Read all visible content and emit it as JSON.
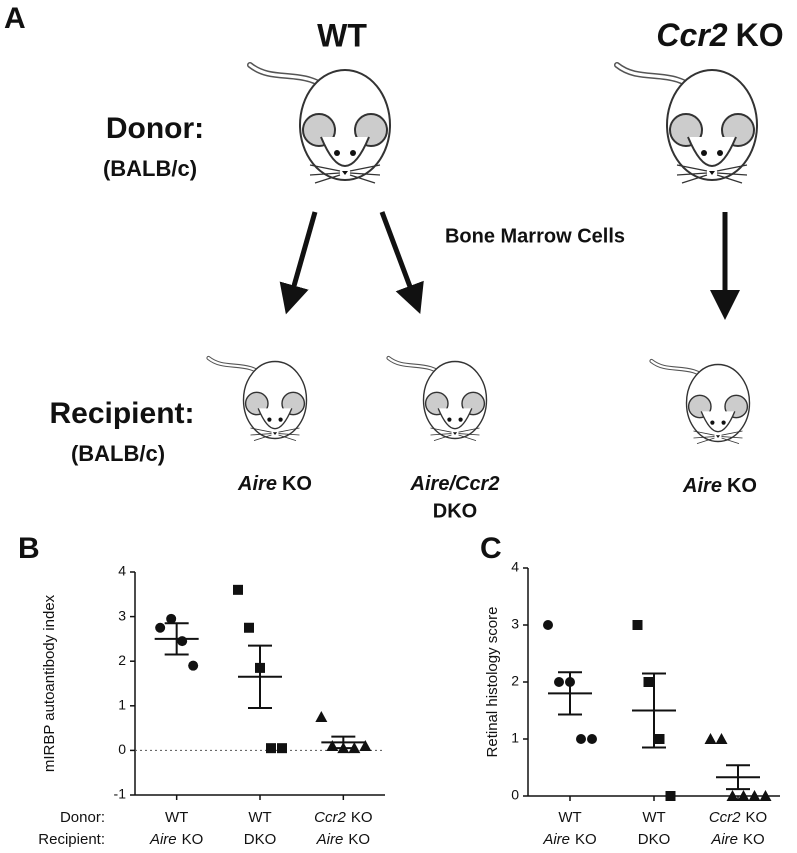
{
  "panel_a": {
    "label": "A",
    "donor_wt": "WT",
    "donor_ko_italic": "Ccr2",
    "donor_ko": "KO",
    "donor": "Donor:",
    "donor_strain": "(BALB/c)",
    "arrow_label": "Bone Marrow Cells",
    "recipient": "Recipient:",
    "recipient_strain": "(BALB/c)",
    "recipients": [
      {
        "italic": "Aire",
        "text": "KO"
      },
      {
        "italic": "Aire/Ccr2",
        "line2": "DKO"
      },
      {
        "italic": "Aire",
        "text": "KO"
      }
    ]
  },
  "chart_data": [
    {
      "type": "scatter",
      "label": "B",
      "ylabel": "mIRBP autoantibody index",
      "ylim": [
        -1,
        4
      ],
      "yticks": [
        -1,
        0,
        1,
        2,
        3,
        4
      ],
      "reference_line": 0,
      "row_labels": [
        "Donor:",
        "Recipient:"
      ],
      "groups": [
        {
          "donor": "WT",
          "recipient_italic": "Aire",
          "recipient": "KO",
          "marker": "circle",
          "values": [
            2.75,
            2.95,
            2.45,
            1.9
          ],
          "mean": 2.5,
          "sem": 0.35
        },
        {
          "donor": "WT",
          "recipient": "DKO",
          "marker": "square",
          "values": [
            3.6,
            2.75,
            1.85,
            0.05,
            0.05
          ],
          "mean": 1.65,
          "sem": 0.7
        },
        {
          "donor_italic": "Ccr2",
          "donor": "KO",
          "recipient_italic": "Aire",
          "recipient": "KO",
          "marker": "triangle",
          "values": [
            0.75,
            0.1,
            0.05,
            0.05,
            0.1
          ],
          "mean": 0.18,
          "sem": 0.13
        }
      ]
    },
    {
      "type": "scatter",
      "label": "C",
      "ylabel": "Retinal histology score",
      "ylim": [
        0,
        4
      ],
      "yticks": [
        0,
        1,
        2,
        3,
        4
      ],
      "groups": [
        {
          "donor": "WT",
          "recipient_italic": "Aire",
          "recipient": "KO",
          "marker": "circle",
          "values": [
            3,
            2,
            2,
            1,
            1
          ],
          "mean": 1.8,
          "sem": 0.37
        },
        {
          "donor": "WT",
          "recipient": "DKO",
          "marker": "square",
          "values": [
            3,
            2,
            1,
            0
          ],
          "mean": 1.5,
          "sem": 0.65
        },
        {
          "donor_italic": "Ccr2",
          "donor": "KO",
          "recipient_italic": "Aire",
          "recipient": "KO",
          "marker": "triangle",
          "values": [
            1,
            1,
            0,
            0,
            0,
            0
          ],
          "mean": 0.33,
          "sem": 0.21
        }
      ]
    }
  ]
}
